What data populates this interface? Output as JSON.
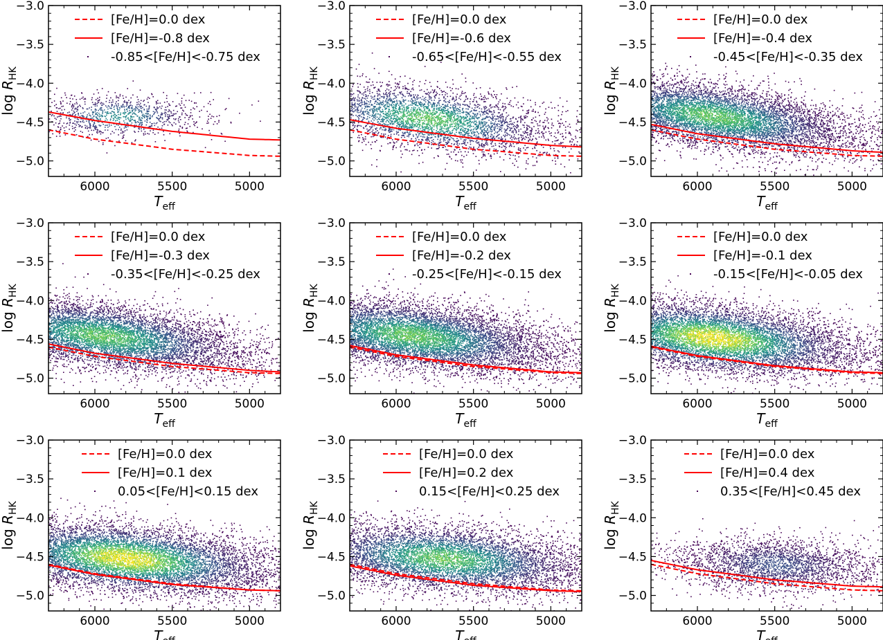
{
  "figure": {
    "layout": "3x3 grid",
    "colormap": "viridis",
    "density_colors": [
      "#440154",
      "#3b528b",
      "#21918c",
      "#5ec962",
      "#fde725"
    ],
    "curve_color": "#ff0000"
  },
  "chart_data": [
    {
      "type": "scatter",
      "xlabel": "T_eff",
      "ylabel": "log R_HK",
      "xlim": [
        6300,
        4800
      ],
      "ylim": [
        -5.2,
        -3.0
      ],
      "xticks": [
        "6000",
        "5500",
        "5000"
      ],
      "yticks": [
        "−3.0",
        "−3.5",
        "−4.0",
        "−4.5",
        "−5.0"
      ],
      "legend": {
        "solar": "[Fe/H]=0.0 dex",
        "model": "[Fe/H]=-0.8 dex",
        "sample": "-0.85<[Fe/H]<-0.75 dex"
      },
      "solar_curve": {
        "teff": [
          6300,
          6000,
          5500,
          5000,
          4800
        ],
        "logrhk": [
          -4.6,
          -4.72,
          -4.85,
          -4.93,
          -4.94
        ]
      },
      "model_curve": {
        "teff": [
          6300,
          6000,
          5500,
          5000,
          4800
        ],
        "logrhk": [
          -4.37,
          -4.48,
          -4.62,
          -4.72,
          -4.73
        ]
      },
      "density": {
        "center_teff": 5850,
        "center_logrhk": -4.42,
        "teff_spread": 250,
        "logrhk_spread": 0.14,
        "trend_slope": 0.0,
        "relative_count": 0.12,
        "peak_color": "#21918c"
      }
    },
    {
      "type": "scatter",
      "xlabel": "T_eff",
      "ylabel": "log R_HK",
      "xlim": [
        6300,
        4800
      ],
      "ylim": [
        -5.2,
        -3.0
      ],
      "xticks": [
        "6000",
        "5500",
        "5000"
      ],
      "yticks": [
        "−3.0",
        "−3.5",
        "−4.0",
        "−4.5",
        "−5.0"
      ],
      "legend": {
        "solar": "[Fe/H]=0.0 dex",
        "model": "[Fe/H]=-0.6 dex",
        "sample": "-0.65<[Fe/H]<-0.55 dex"
      },
      "solar_curve": {
        "teff": [
          6300,
          6000,
          5500,
          5000,
          4800
        ],
        "logrhk": [
          -4.6,
          -4.72,
          -4.85,
          -4.93,
          -4.94
        ]
      },
      "model_curve": {
        "teff": [
          6300,
          6000,
          5500,
          5000,
          4800
        ],
        "logrhk": [
          -4.47,
          -4.58,
          -4.71,
          -4.8,
          -4.82
        ]
      },
      "density": {
        "center_teff": 5800,
        "center_logrhk": -4.45,
        "teff_spread": 380,
        "logrhk_spread": 0.2,
        "trend_slope": 0.00025,
        "relative_count": 0.45,
        "peak_color": "#5ec962"
      }
    },
    {
      "type": "scatter",
      "xlabel": "T_eff",
      "ylabel": "log R_HK",
      "xlim": [
        6300,
        4800
      ],
      "ylim": [
        -5.2,
        -3.0
      ],
      "xticks": [
        "6000",
        "5500",
        "5000"
      ],
      "yticks": [
        "−3.0",
        "−3.5",
        "−4.0",
        "−4.5",
        "−5.0"
      ],
      "legend": {
        "solar": "[Fe/H]=0.0 dex",
        "model": "[Fe/H]=-0.4 dex",
        "sample": "-0.45<[Fe/H]<-0.35 dex"
      },
      "solar_curve": {
        "teff": [
          6300,
          6000,
          5500,
          5000,
          4800
        ],
        "logrhk": [
          -4.6,
          -4.72,
          -4.85,
          -4.93,
          -4.94
        ]
      },
      "model_curve": {
        "teff": [
          6300,
          6000,
          5500,
          5000,
          4800
        ],
        "logrhk": [
          -4.53,
          -4.65,
          -4.78,
          -4.87,
          -4.89
        ]
      },
      "density": {
        "center_teff": 5900,
        "center_logrhk": -4.42,
        "teff_spread": 420,
        "logrhk_spread": 0.2,
        "trend_slope": 0.00028,
        "relative_count": 0.9,
        "peak_color": "#5ec962"
      }
    },
    {
      "type": "scatter",
      "xlabel": "T_eff",
      "ylabel": "log R_HK",
      "xlim": [
        6300,
        4800
      ],
      "ylim": [
        -5.2,
        -3.0
      ],
      "xticks": [
        "6000",
        "5500",
        "5000"
      ],
      "yticks": [
        "−3.0",
        "−3.5",
        "−4.0",
        "−4.5",
        "−5.0"
      ],
      "legend": {
        "solar": "[Fe/H]=0.0 dex",
        "model": "[Fe/H]=-0.3 dex",
        "sample": "-0.35<[Fe/H]<-0.25 dex"
      },
      "solar_curve": {
        "teff": [
          6300,
          6000,
          5500,
          5000,
          4800
        ],
        "logrhk": [
          -4.6,
          -4.72,
          -4.85,
          -4.93,
          -4.94
        ]
      },
      "model_curve": {
        "teff": [
          6300,
          6000,
          5500,
          5000,
          4800
        ],
        "logrhk": [
          -4.56,
          -4.68,
          -4.81,
          -4.9,
          -4.92
        ]
      },
      "density": {
        "center_teff": 5950,
        "center_logrhk": -4.45,
        "teff_spread": 420,
        "logrhk_spread": 0.2,
        "trend_slope": 0.00025,
        "relative_count": 0.9,
        "peak_color": "#5ec962"
      }
    },
    {
      "type": "scatter",
      "xlabel": "T_eff",
      "ylabel": "log R_HK",
      "xlim": [
        6300,
        4800
      ],
      "ylim": [
        -5.2,
        -3.0
      ],
      "xticks": [
        "6000",
        "5500",
        "5000"
      ],
      "yticks": [
        "−3.0",
        "−3.5",
        "−4.0",
        "−4.5",
        "−5.0"
      ],
      "legend": {
        "solar": "[Fe/H]=0.0 dex",
        "model": "[Fe/H]=-0.2 dex",
        "sample": "-0.25<[Fe/H]<-0.15 dex"
      },
      "solar_curve": {
        "teff": [
          6300,
          6000,
          5500,
          5000,
          4800
        ],
        "logrhk": [
          -4.6,
          -4.72,
          -4.85,
          -4.93,
          -4.94
        ]
      },
      "model_curve": {
        "teff": [
          6300,
          6000,
          5500,
          5000,
          4800
        ],
        "logrhk": [
          -4.58,
          -4.7,
          -4.83,
          -4.92,
          -4.93
        ]
      },
      "density": {
        "center_teff": 5900,
        "center_logrhk": -4.45,
        "teff_spread": 430,
        "logrhk_spread": 0.21,
        "trend_slope": 0.00022,
        "relative_count": 1.0,
        "peak_color": "#5ec962"
      }
    },
    {
      "type": "scatter",
      "xlabel": "T_eff",
      "ylabel": "log R_HK",
      "xlim": [
        6300,
        4800
      ],
      "ylim": [
        -5.2,
        -3.0
      ],
      "xticks": [
        "6000",
        "5500",
        "5000"
      ],
      "yticks": [
        "−3.0",
        "−3.5",
        "−4.0",
        "−4.5",
        "−5.0"
      ],
      "legend": {
        "solar": "[Fe/H]=0.0 dex",
        "model": "[Fe/H]=-0.1 dex",
        "sample": "-0.15<[Fe/H]<-0.05 dex"
      },
      "solar_curve": {
        "teff": [
          6300,
          6000,
          5500,
          5000,
          4800
        ],
        "logrhk": [
          -4.6,
          -4.72,
          -4.85,
          -4.93,
          -4.94
        ]
      },
      "model_curve": {
        "teff": [
          6300,
          6000,
          5500,
          5000,
          4800
        ],
        "logrhk": [
          -4.59,
          -4.71,
          -4.84,
          -4.92,
          -4.93
        ]
      },
      "density": {
        "center_teff": 5900,
        "center_logrhk": -4.48,
        "teff_spread": 430,
        "logrhk_spread": 0.21,
        "trend_slope": 0.0002,
        "relative_count": 1.0,
        "peak_color": "#fde725"
      }
    },
    {
      "type": "scatter",
      "xlabel": "T_eff",
      "ylabel": "log R_HK",
      "xlim": [
        6300,
        4800
      ],
      "ylim": [
        -5.2,
        -3.0
      ],
      "xticks": [
        "6000",
        "5500",
        "5000"
      ],
      "yticks": [
        "−3.0",
        "−3.5",
        "−4.0",
        "−4.5",
        "−5.0"
      ],
      "legend": {
        "solar": "[Fe/H]=0.0 dex",
        "model": "[Fe/H]=0.1 dex",
        "sample": "0.05<[Fe/H]<0.15 dex"
      },
      "solar_curve": {
        "teff": [
          6300,
          6000,
          5500,
          5000,
          4800
        ],
        "logrhk": [
          -4.6,
          -4.72,
          -4.85,
          -4.93,
          -4.94
        ]
      },
      "model_curve": {
        "teff": [
          6300,
          6000,
          5500,
          5000,
          4800
        ],
        "logrhk": [
          -4.61,
          -4.73,
          -4.86,
          -4.93,
          -4.94
        ]
      },
      "density": {
        "center_teff": 5800,
        "center_logrhk": -4.52,
        "teff_spread": 440,
        "logrhk_spread": 0.21,
        "trend_slope": 0.00018,
        "relative_count": 1.0,
        "peak_color": "#fde725"
      }
    },
    {
      "type": "scatter",
      "xlabel": "T_eff",
      "ylabel": "log R_HK",
      "xlim": [
        6300,
        4800
      ],
      "ylim": [
        -5.2,
        -3.0
      ],
      "xticks": [
        "6000",
        "5500",
        "5000"
      ],
      "yticks": [
        "−3.0",
        "−3.5",
        "−4.0",
        "−4.5",
        "−5.0"
      ],
      "legend": {
        "solar": "[Fe/H]=0.0 dex",
        "model": "[Fe/H]=0.2 dex",
        "sample": "0.15<[Fe/H]<0.25 dex"
      },
      "solar_curve": {
        "teff": [
          6300,
          6000,
          5500,
          5000,
          4800
        ],
        "logrhk": [
          -4.6,
          -4.72,
          -4.85,
          -4.93,
          -4.94
        ]
      },
      "model_curve": {
        "teff": [
          6300,
          6000,
          5500,
          5000,
          4800
        ],
        "logrhk": [
          -4.62,
          -4.74,
          -4.87,
          -4.94,
          -4.95
        ]
      },
      "density": {
        "center_teff": 5700,
        "center_logrhk": -4.52,
        "teff_spread": 430,
        "logrhk_spread": 0.21,
        "trend_slope": 0.00015,
        "relative_count": 0.8,
        "peak_color": "#5ec962"
      }
    },
    {
      "type": "scatter",
      "xlabel": "T_eff",
      "ylabel": "log R_HK",
      "xlim": [
        6300,
        4800
      ],
      "ylim": [
        -5.2,
        -3.0
      ],
      "xticks": [
        "6000",
        "5500",
        "5000"
      ],
      "yticks": [
        "−3.0",
        "−3.5",
        "−4.0",
        "−4.5",
        "−5.0"
      ],
      "legend": {
        "solar": "[Fe/H]=0.0 dex",
        "model": "[Fe/H]=0.4 dex",
        "sample": "0.35<[Fe/H]<0.45 dex"
      },
      "solar_curve": {
        "teff": [
          6300,
          6000,
          5500,
          5000,
          4800
        ],
        "logrhk": [
          -4.6,
          -4.72,
          -4.85,
          -4.93,
          -4.94
        ]
      },
      "model_curve": {
        "teff": [
          6300,
          6000,
          5500,
          5000,
          4800
        ],
        "logrhk": [
          -4.55,
          -4.67,
          -4.8,
          -4.88,
          -4.89
        ]
      },
      "density": {
        "center_teff": 5500,
        "center_logrhk": -4.6,
        "teff_spread": 300,
        "logrhk_spread": 0.17,
        "trend_slope": 0.0001,
        "relative_count": 0.3,
        "peak_color": "#3b528b"
      }
    }
  ]
}
